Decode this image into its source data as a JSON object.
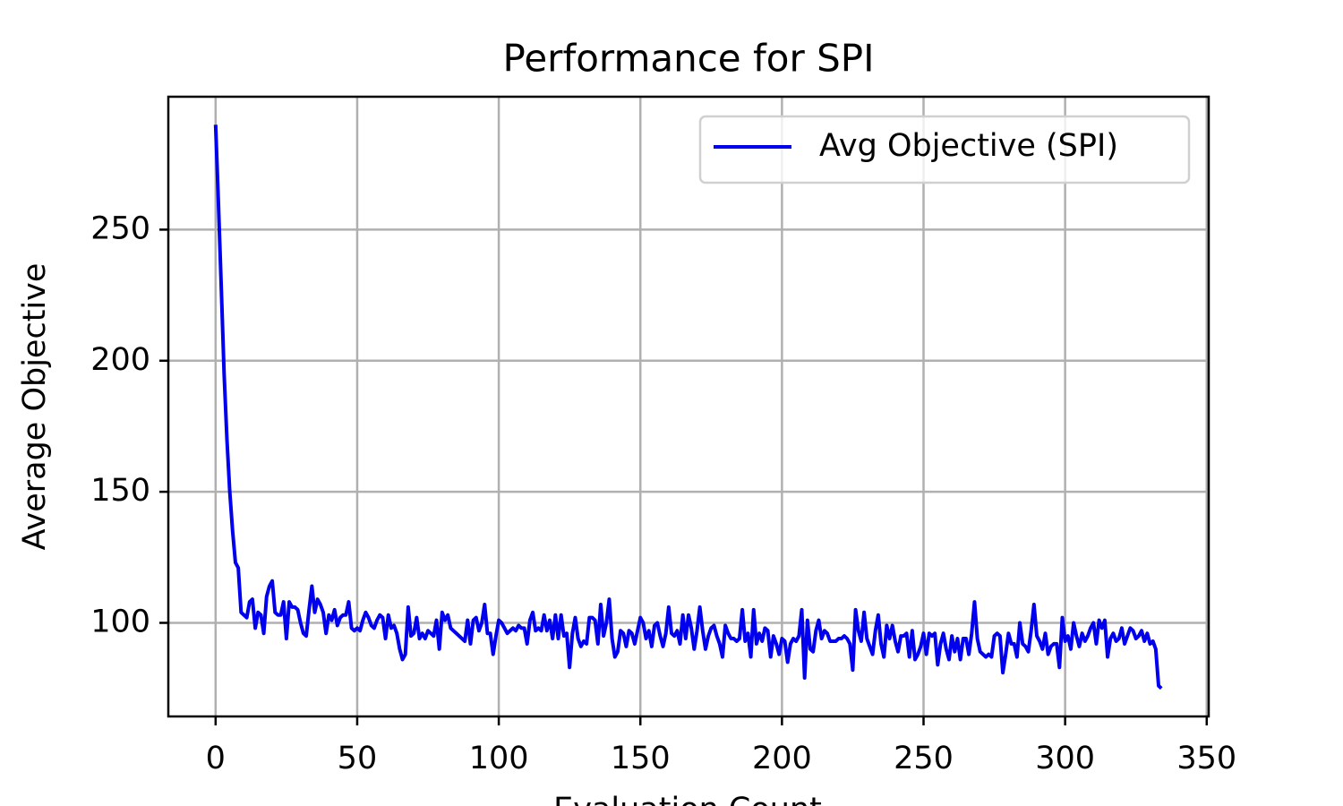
{
  "chart_data": {
    "type": "line",
    "title": "Performance for SPI",
    "x_label": "Evaluation Count",
    "y_label": "Average Objective",
    "xlim": [
      -16.7,
      350.7
    ],
    "ylim": [
      64.3,
      300.7
    ],
    "xticks": [
      0,
      50,
      100,
      150,
      200,
      250,
      300,
      350
    ],
    "yticks": [
      100,
      150,
      200,
      250
    ],
    "grid": true,
    "legend": "upper right",
    "x": [
      0,
      1,
      2,
      3,
      4,
      5,
      6,
      7,
      8,
      9,
      10,
      11,
      12,
      13,
      14,
      15,
      16,
      17,
      18,
      19,
      20,
      21,
      22,
      23,
      24,
      25,
      26,
      27,
      28,
      29,
      30,
      31,
      32,
      33,
      34,
      35,
      36,
      37,
      38,
      39,
      40,
      41,
      42,
      43,
      44,
      45,
      46,
      47,
      48,
      49,
      50,
      51,
      52,
      53,
      54,
      55,
      56,
      57,
      58,
      59,
      60,
      61,
      62,
      63,
      64,
      65,
      66,
      67,
      68,
      69,
      70,
      71,
      72,
      73,
      74,
      75,
      76,
      77,
      78,
      79,
      80,
      81,
      82,
      83,
      84,
      85,
      86,
      87,
      88,
      89,
      90,
      91,
      92,
      93,
      94,
      95,
      96,
      97,
      98,
      99,
      100,
      101,
      102,
      103,
      104,
      105,
      106,
      107,
      108,
      109,
      110,
      111,
      112,
      113,
      114,
      115,
      116,
      117,
      118,
      119,
      120,
      121,
      122,
      123,
      124,
      125,
      126,
      127,
      128,
      129,
      130,
      131,
      132,
      133,
      134,
      135,
      136,
      137,
      138,
      139,
      140,
      141,
      142,
      143,
      144,
      145,
      146,
      147,
      148,
      149,
      150,
      151,
      152,
      153,
      154,
      155,
      156,
      157,
      158,
      159,
      160,
      161,
      162,
      163,
      164,
      165,
      166,
      167,
      168,
      169,
      170,
      171,
      172,
      173,
      174,
      175,
      176,
      177,
      178,
      179,
      180,
      181,
      182,
      183,
      184,
      185,
      186,
      187,
      188,
      189,
      190,
      191,
      192,
      193,
      194,
      195,
      196,
      197,
      198,
      199,
      200,
      201,
      202,
      203,
      204,
      205,
      206,
      207,
      208,
      209,
      210,
      211,
      212,
      213,
      214,
      215,
      216,
      217,
      218,
      219,
      220,
      221,
      222,
      223,
      224,
      225,
      226,
      227,
      228,
      229,
      230,
      231,
      232,
      233,
      234,
      235,
      236,
      237,
      238,
      239,
      240,
      241,
      242,
      243,
      244,
      245,
      246,
      247,
      248,
      249,
      250,
      251,
      252,
      253,
      254,
      255,
      256,
      257,
      258,
      259,
      260,
      261,
      262,
      263,
      264,
      265,
      266,
      267,
      268,
      269,
      270,
      271,
      272,
      273,
      274,
      275,
      276,
      277,
      278,
      279,
      280,
      281,
      282,
      283,
      284,
      285,
      286,
      287,
      288,
      289,
      290,
      291,
      292,
      293,
      294,
      295,
      296,
      297,
      298,
      299,
      300,
      301,
      302,
      303,
      304,
      305,
      306,
      307,
      308,
      309,
      310,
      311,
      312,
      313,
      314,
      315,
      316,
      317,
      318,
      319,
      320,
      321,
      322,
      323,
      324,
      325,
      326,
      327,
      328,
      329,
      330,
      331,
      332,
      333,
      334
    ],
    "series": [
      {
        "name": "Avg Objective (SPI)",
        "color": "#0000ee",
        "values": [
          290,
          260,
          228,
          195,
          170,
          150,
          135,
          123,
          121,
          104,
          103,
          102,
          108,
          109,
          98,
          104,
          103,
          96,
          110,
          114,
          116,
          104,
          103,
          103,
          108,
          94,
          108,
          106,
          106,
          105,
          100,
          96,
          95,
          105,
          114,
          104,
          109,
          107,
          104,
          96,
          103,
          101,
          105,
          99,
          102,
          103,
          103,
          108,
          98,
          97,
          98,
          97,
          101,
          104,
          102,
          99,
          98,
          101,
          103,
          102,
          94,
          103,
          98,
          99,
          96,
          90,
          86,
          88,
          106,
          95,
          96,
          102,
          94,
          96,
          94,
          97,
          96,
          95,
          101,
          90,
          104,
          101,
          103,
          98,
          97,
          96,
          95,
          94,
          93,
          101,
          92,
          101,
          102,
          97,
          100,
          107,
          96,
          96,
          88,
          95,
          101,
          100,
          98,
          96,
          97,
          98,
          97,
          99,
          98,
          98,
          92,
          101,
          104,
          97,
          98,
          97,
          103,
          97,
          101,
          94,
          103,
          94,
          103,
          95,
          96,
          83,
          96,
          102,
          94,
          91,
          93,
          92,
          102,
          102,
          101,
          92,
          107,
          95,
          100,
          109,
          94,
          87,
          89,
          97,
          96,
          91,
          97,
          96,
          92,
          97,
          102,
          100,
          94,
          97,
          91,
          99,
          100,
          95,
          91,
          96,
          106,
          96,
          95,
          97,
          92,
          103,
          94,
          103,
          98,
          90,
          97,
          106,
          97,
          90,
          95,
          98,
          99,
          95,
          92,
          87,
          99,
          96,
          94,
          94,
          93,
          94,
          105,
          93,
          96,
          87,
          105,
          92,
          96,
          93,
          98,
          97,
          87,
          95,
          92,
          88,
          94,
          93,
          85,
          92,
          94,
          93,
          95,
          105,
          79,
          101,
          90,
          89,
          97,
          101,
          94,
          97,
          96,
          93,
          93,
          93,
          94,
          94,
          95,
          94,
          92,
          82,
          105,
          97,
          93,
          104,
          94,
          91,
          88,
          97,
          103,
          92,
          87,
          99,
          94,
          99,
          93,
          89,
          95,
          95,
          96,
          87,
          97,
          86,
          88,
          91,
          96,
          88,
          96,
          95,
          96,
          84,
          92,
          96,
          90,
          86,
          95,
          89,
          94,
          86,
          94,
          94,
          88,
          96,
          108,
          94,
          89,
          88,
          87,
          88,
          87,
          95,
          96,
          95,
          81,
          88,
          96,
          92,
          92,
          87,
          100,
          92,
          91,
          89,
          97,
          107,
          95,
          93,
          90,
          96,
          88,
          91,
          92,
          92,
          83,
          102,
          93,
          95,
          90,
          100,
          95,
          91,
          96,
          93,
          95,
          98,
          100,
          92,
          101,
          98,
          101,
          87,
          94,
          96,
          93,
          94,
          98,
          92,
          95,
          98,
          97,
          94,
          95,
          97,
          93,
          96,
          92,
          93,
          90,
          76,
          75
        ]
      }
    ]
  }
}
